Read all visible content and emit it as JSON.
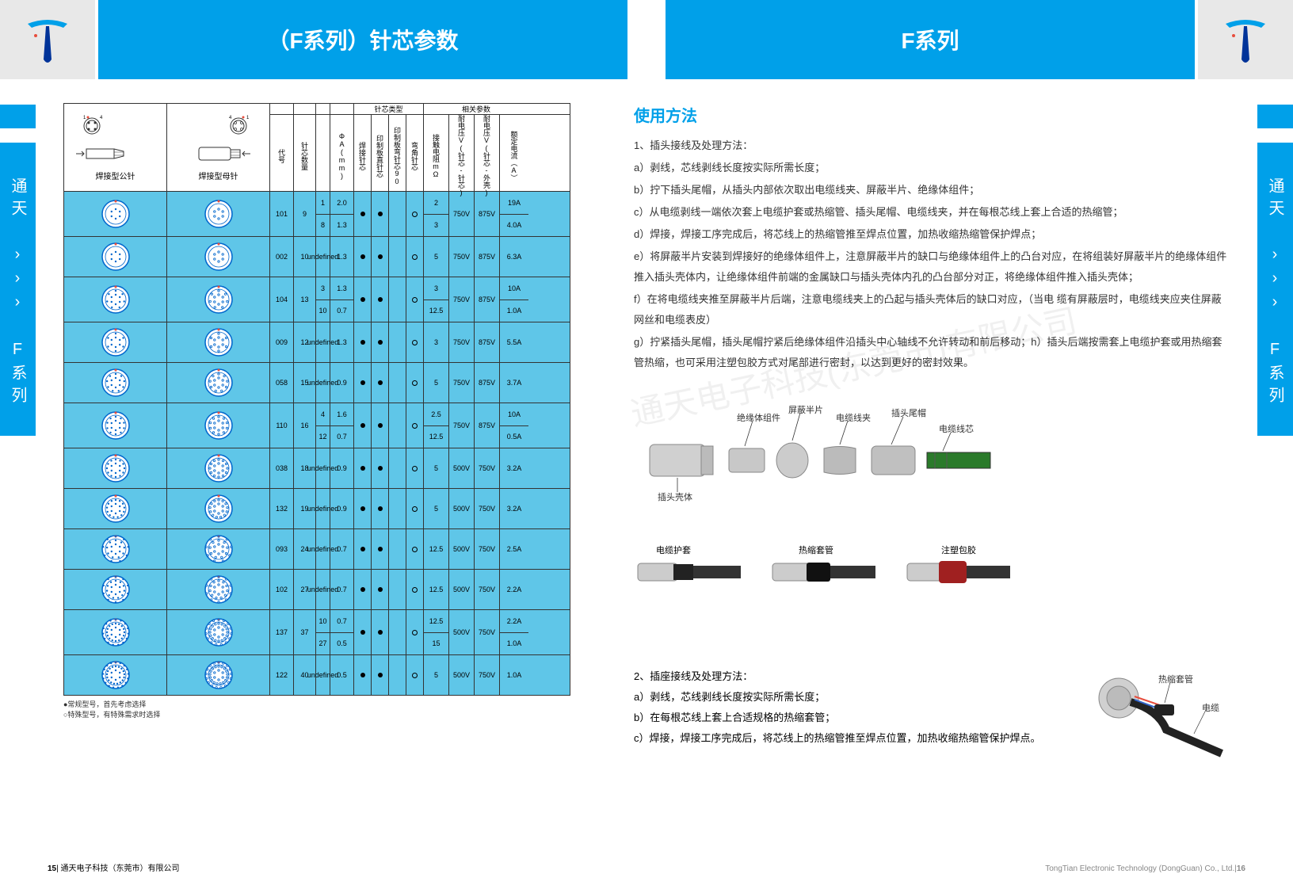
{
  "header": {
    "title_left": "（F系列）针芯参数",
    "title_right": "F系列"
  },
  "sidebar_text": "通天 ››› F系列",
  "diagram_labels": {
    "left": "焊接型公针",
    "right": "焊接型母针"
  },
  "table": {
    "header_groups": {
      "pin_type": "针芯类型",
      "params": "相关参数"
    },
    "columns": [
      "代号",
      "针芯数量",
      "",
      "ΦA(mm)",
      "焊接针芯",
      "印制板直针芯",
      "印制板弯针芯90",
      "弯角针芯",
      "接触电阻mΩ",
      "耐电压V(针芯-针芯)",
      "耐电压V(针芯-外壳)",
      "额定电流（A）"
    ],
    "rows": [
      {
        "code": "101",
        "qty": "9",
        "sub": [
          "1",
          "8"
        ],
        "phi": [
          "2.0",
          "1.3"
        ],
        "t": [
          "●",
          "●",
          "",
          "○"
        ],
        "res": [
          "2",
          "3"
        ],
        "v1": "750V",
        "v2": "875V",
        "curr": [
          "19A",
          "4.0A"
        ]
      },
      {
        "code": "002",
        "qty": "10",
        "sub": [],
        "phi": [
          "1.3"
        ],
        "t": [
          "●",
          "●",
          "",
          "○"
        ],
        "res": [
          "5"
        ],
        "v1": "750V",
        "v2": "875V",
        "curr": [
          "6.3A"
        ]
      },
      {
        "code": "104",
        "qty": "13",
        "sub": [
          "3",
          "10"
        ],
        "phi": [
          "1.3",
          "0.7"
        ],
        "t": [
          "●",
          "●",
          "",
          "○"
        ],
        "res": [
          "3",
          "12.5"
        ],
        "v1": "750V",
        "v2": "875V",
        "curr": [
          "10A",
          "1.0A"
        ]
      },
      {
        "code": "009",
        "qty": "12",
        "sub": [],
        "phi": [
          "1.3"
        ],
        "t": [
          "●",
          "●",
          "",
          "○"
        ],
        "res": [
          "3"
        ],
        "v1": "750V",
        "v2": "875V",
        "curr": [
          "5.5A"
        ]
      },
      {
        "code": "058",
        "qty": "15",
        "sub": [],
        "phi": [
          "0.9"
        ],
        "t": [
          "●",
          "●",
          "",
          "○"
        ],
        "res": [
          "5"
        ],
        "v1": "750V",
        "v2": "875V",
        "curr": [
          "3.7A"
        ]
      },
      {
        "code": "110",
        "qty": "16",
        "sub": [
          "4",
          "12"
        ],
        "phi": [
          "1.6",
          "0.7"
        ],
        "t": [
          "●",
          "●",
          "",
          "○"
        ],
        "res": [
          "2.5",
          "12.5"
        ],
        "v1": "750V",
        "v2": "875V",
        "curr": [
          "10A",
          "0.5A"
        ]
      },
      {
        "code": "038",
        "qty": "18",
        "sub": [],
        "phi": [
          "0.9"
        ],
        "t": [
          "●",
          "●",
          "",
          "○"
        ],
        "res": [
          "5"
        ],
        "v1": "500V",
        "v2": "750V",
        "curr": [
          "3.2A"
        ]
      },
      {
        "code": "132",
        "qty": "19",
        "sub": [],
        "phi": [
          "0.9"
        ],
        "t": [
          "●",
          "●",
          "",
          "○"
        ],
        "res": [
          "5"
        ],
        "v1": "500V",
        "v2": "750V",
        "curr": [
          "3.2A"
        ]
      },
      {
        "code": "093",
        "qty": "24",
        "sub": [],
        "phi": [
          "0.7"
        ],
        "t": [
          "●",
          "●",
          "",
          "○"
        ],
        "res": [
          "12.5"
        ],
        "v1": "500V",
        "v2": "750V",
        "curr": [
          "2.5A"
        ]
      },
      {
        "code": "102",
        "qty": "27",
        "sub": [],
        "phi": [
          "0.7"
        ],
        "t": [
          "●",
          "●",
          "",
          "○"
        ],
        "res": [
          "12.5"
        ],
        "v1": "500V",
        "v2": "750V",
        "curr": [
          "2.2A"
        ]
      },
      {
        "code": "137",
        "qty": "37",
        "sub": [
          "10",
          "27"
        ],
        "phi": [
          "0.7",
          "0.5"
        ],
        "t": [
          "●",
          "●",
          "",
          "○"
        ],
        "res": [
          "12.5",
          "15"
        ],
        "v1": "500V",
        "v2": "750V",
        "curr": [
          "2.2A",
          "1.0A"
        ]
      },
      {
        "code": "122",
        "qty": "40",
        "sub": [],
        "phi": [
          "0.5"
        ],
        "t": [
          "●",
          "●",
          "",
          "○"
        ],
        "res": [
          "5"
        ],
        "v1": "500V",
        "v2": "750V",
        "curr": [
          "1.0A"
        ]
      }
    ],
    "notes": [
      "●常规型号，首先考虑选择",
      "○特殊型号，有特殊需求时选择"
    ]
  },
  "usage": {
    "title": "使用方法",
    "section1_title": "1、插头接线及处理方法：",
    "steps1": [
      "a）剥线，芯线剥线长度按实际所需长度；",
      "b）拧下插头尾帽，从插头内部依次取出电缆线夹、屏蔽半片、绝缘体组件；",
      "c）从电缆剥线一端依次套上电缆护套或热缩管、插头尾帽、电缆线夹，并在每根芯线上套上合适的热缩管；",
      "d）焊接，焊接工序完成后，将芯线上的热缩管推至焊点位置，加热收缩热缩管保护焊点；",
      "e）将屏蔽半片安装到焊接好的绝缘体组件上，注意屏蔽半片的缺口与绝缘体组件上的凸台对应，在将组装好屏蔽半片的绝缘体组件推入插头壳体内，让绝缘体组件前端的金属缺口与插头壳体内孔的凸台部分对正，将绝缘体组件推入插头壳体；",
      "f）在将电缆线夹推至屏蔽半片后端，注意电缆线夹上的凸起与插头壳体后的缺口对应，（当电 缆有屏蔽层时，电缆线夹应夹住屏蔽网丝和电缆表皮）",
      "g）拧紧插头尾帽，插头尾帽拧紧后绝缘体组件沿插头中心轴线不允许转动和前后移动；h）插头后端按需套上电缆护套或用热缩套管热缩，也可采用注塑包胶方式对尾部进行密封，以达到更好的密封效果。"
    ],
    "part_labels": [
      "绝缘体组件",
      "屏蔽半片",
      "电缆线夹",
      "插头尾帽",
      "电缆线芯",
      "插头壳体"
    ],
    "cable_labels": [
      "电缆护套",
      "热缩套管",
      "注塑包胶"
    ],
    "section2_title": "2、插座接线及处理方法：",
    "steps2": [
      "a）剥线，芯线剥线长度按实际所需长度；",
      "b）在每根芯线上套上合适规格的热缩套管；",
      "c）焊接，焊接工序完成后，将芯线上的热缩管推至焊点位置，加热收缩热缩管保护焊点。"
    ],
    "section2_labels": [
      "热缩套管",
      "电缆"
    ]
  },
  "footer": {
    "left_page": "15",
    "left_company": "| 通天电子科技（东莞市）有限公司",
    "right_company": "TongTian Electronic Technology (DongGuan) Co., Ltd.|",
    "right_page": "16"
  },
  "watermark": "通天电子科技(东莞市)有限公司",
  "colors": {
    "primary": "#00a0e9",
    "table_bg": "#5fc6e8",
    "header_gray": "#e8e8e8"
  }
}
